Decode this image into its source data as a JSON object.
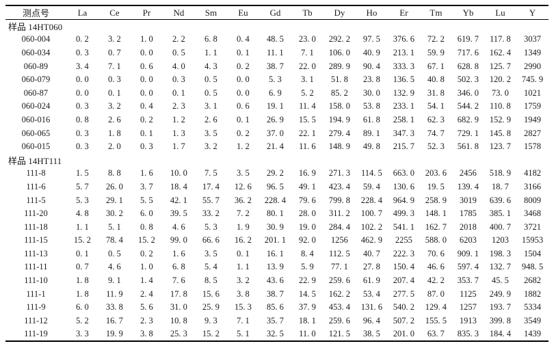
{
  "table": {
    "columns": [
      "测点号",
      "La",
      "Ce",
      "Pr",
      "Nd",
      "Sm",
      "Eu",
      "Gd",
      "Tb",
      "Dy",
      "Ho",
      "Er",
      "Tm",
      "Yb",
      "Lu",
      "Y"
    ],
    "sections": [
      {
        "label": "样品 14HT060",
        "rows": [
          {
            "id": "060-004",
            "values": [
              "0. 2",
              "3. 2",
              "1. 0",
              "2. 2",
              "6. 8",
              "0. 4",
              "48. 5",
              "23. 0",
              "292. 2",
              "97. 5",
              "376. 6",
              "72. 2",
              "619. 7",
              "117. 8",
              "3037"
            ]
          },
          {
            "id": "060-034",
            "values": [
              "0. 3",
              "0. 7",
              "0. 0",
              "0. 5",
              "1. 1",
              "0. 1",
              "11. 1",
              "7. 1",
              "106. 0",
              "40. 9",
              "213. 1",
              "59. 9",
              "717. 6",
              "162. 4",
              "1349"
            ]
          },
          {
            "id": "060-89",
            "values": [
              "3. 4",
              "7. 1",
              "0. 6",
              "4. 0",
              "4. 3",
              "0. 2",
              "38. 7",
              "22. 0",
              "289. 9",
              "90. 4",
              "333. 3",
              "67. 1",
              "628. 8",
              "125. 7",
              "2990"
            ]
          },
          {
            "id": "060-079",
            "values": [
              "0. 0",
              "0. 3",
              "0. 0",
              "0. 3",
              "0. 5",
              "0. 0",
              "5. 3",
              "3. 1",
              "51. 8",
              "23. 8",
              "136. 5",
              "40. 8",
              "502. 3",
              "120. 2",
              "745. 9"
            ]
          },
          {
            "id": "060-87",
            "values": [
              "0. 0",
              "0. 1",
              "0. 0",
              "0. 1",
              "0. 5",
              "0. 0",
              "6. 9",
              "5. 2",
              "85. 2",
              "30. 0",
              "132. 9",
              "31. 8",
              "346. 0",
              "73. 0",
              "1021"
            ]
          },
          {
            "id": "060-024",
            "values": [
              "0. 3",
              "3. 2",
              "0. 4",
              "2. 3",
              "3. 1",
              "0. 6",
              "19. 1",
              "11. 4",
              "158. 0",
              "53. 8",
              "233. 1",
              "54. 1",
              "544. 2",
              "110. 8",
              "1759"
            ]
          },
          {
            "id": "060-016",
            "values": [
              "0. 8",
              "2. 6",
              "0. 2",
              "1. 2",
              "2. 6",
              "0. 1",
              "26. 9",
              "15. 5",
              "194. 9",
              "61. 8",
              "258. 1",
              "62. 3",
              "682. 9",
              "152. 9",
              "1949"
            ]
          },
          {
            "id": "060-065",
            "values": [
              "0. 3",
              "1. 8",
              "0. 1",
              "1. 3",
              "3. 5",
              "0. 2",
              "37. 0",
              "22. 1",
              "279. 4",
              "89. 1",
              "347. 3",
              "74. 7",
              "729. 1",
              "145. 8",
              "2827"
            ]
          },
          {
            "id": "060-015",
            "values": [
              "0. 3",
              "2. 0",
              "0. 3",
              "1. 7",
              "3. 2",
              "1. 2",
              "21. 4",
              "11. 6",
              "148. 9",
              "49. 8",
              "215. 7",
              "52. 3",
              "561. 8",
              "123. 7",
              "1578"
            ]
          }
        ]
      },
      {
        "label": "样品 14HT111",
        "rows": [
          {
            "id": "111-8",
            "values": [
              "1. 5",
              "8. 8",
              "1. 6",
              "10. 0",
              "7. 5",
              "3. 5",
              "29. 2",
              "16. 9",
              "271. 3",
              "114. 5",
              "663. 0",
              "203. 6",
              "2456",
              "518. 9",
              "4182"
            ]
          },
          {
            "id": "111-6",
            "values": [
              "5. 7",
              "26. 0",
              "3. 7",
              "18. 4",
              "17. 4",
              "12. 6",
              "96. 5",
              "49. 1",
              "423. 4",
              "59. 4",
              "130. 6",
              "19. 5",
              "139. 4",
              "18. 7",
              "3166"
            ]
          },
          {
            "id": "111-5",
            "values": [
              "5. 3",
              "29. 1",
              "5. 5",
              "42. 1",
              "55. 7",
              "36. 2",
              "228. 4",
              "79. 6",
              "799. 8",
              "228. 4",
              "964. 9",
              "258. 9",
              "3019",
              "639. 6",
              "8009"
            ]
          },
          {
            "id": "111-20",
            "values": [
              "4. 8",
              "30. 2",
              "6. 0",
              "39. 5",
              "33. 2",
              "7. 2",
              "80. 1",
              "28. 0",
              "311. 2",
              "100. 7",
              "499. 3",
              "148. 1",
              "1785",
              "385. 1",
              "3468"
            ]
          },
          {
            "id": "111-18",
            "values": [
              "1. 1",
              "5. 1",
              "0. 8",
              "4. 6",
              "5. 3",
              "1. 9",
              "30. 9",
              "19. 0",
              "284. 4",
              "102. 2",
              "541. 1",
              "162. 7",
              "2018",
              "400. 7",
              "3721"
            ]
          },
          {
            "id": "111-15",
            "values": [
              "15. 2",
              "78. 4",
              "15. 2",
              "99. 0",
              "66. 6",
              "16. 2",
              "201. 1",
              "92. 0",
              "1256",
              "462. 9",
              "2255",
              "588. 0",
              "6203",
              "1203",
              "15953"
            ]
          },
          {
            "id": "111-13",
            "values": [
              "0. 1",
              "0. 5",
              "0. 2",
              "1. 6",
              "3. 5",
              "0. 1",
              "16. 1",
              "8. 4",
              "112. 5",
              "40. 7",
              "222. 3",
              "70. 6",
              "909. 1",
              "198. 3",
              "1504"
            ]
          },
          {
            "id": "111-11",
            "values": [
              "0. 7",
              "4. 6",
              "1. 0",
              "6. 8",
              "5. 4",
              "1. 1",
              "13. 9",
              "5. 9",
              "77. 1",
              "27. 8",
              "150. 4",
              "46. 6",
              "597. 4",
              "132. 7",
              "948. 5"
            ]
          },
          {
            "id": "111-10",
            "values": [
              "1. 8",
              "9. 1",
              "1. 4",
              "7. 6",
              "8. 5",
              "3. 2",
              "43. 6",
              "22. 9",
              "259. 6",
              "61. 9",
              "207. 4",
              "42. 2",
              "353. 7",
              "45. 5",
              "2682"
            ]
          },
          {
            "id": "111-1",
            "values": [
              "1. 8",
              "11. 9",
              "2. 4",
              "17. 8",
              "15. 6",
              "3. 8",
              "38. 7",
              "14. 5",
              "162. 2",
              "53. 4",
              "277. 5",
              "87. 0",
              "1125",
              "249. 9",
              "1882"
            ]
          },
          {
            "id": "111-9",
            "values": [
              "6. 0",
              "33. 8",
              "5. 6",
              "31. 0",
              "25. 9",
              "15. 3",
              "85. 6",
              "37. 9",
              "453. 4",
              "131. 6",
              "540. 2",
              "129. 4",
              "1257",
              "193. 7",
              "5334"
            ]
          },
          {
            "id": "111-12",
            "values": [
              "5. 2",
              "16. 7",
              "2. 3",
              "10. 8",
              "9. 3",
              "7. 1",
              "35. 7",
              "18. 1",
              "259. 6",
              "96. 4",
              "507. 2",
              "155. 5",
              "1913",
              "399. 8",
              "3549"
            ]
          },
          {
            "id": "111-19",
            "values": [
              "3. 3",
              "19. 9",
              "3. 8",
              "25. 3",
              "15. 2",
              "5. 1",
              "32. 5",
              "11. 0",
              "121. 5",
              "38. 5",
              "201. 0",
              "63. 7",
              "835. 3",
              "184. 4",
              "1439"
            ]
          }
        ]
      }
    ]
  }
}
